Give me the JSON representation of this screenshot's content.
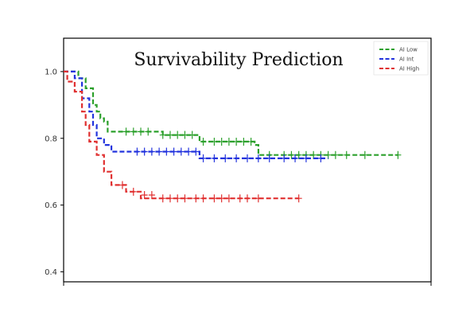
{
  "chart_data": {
    "type": "line",
    "title": "Survivability Prediction",
    "xlabel": "",
    "ylabel": "",
    "ylim": [
      0.37,
      1.1
    ],
    "yticks": [
      "1.0",
      "0.8",
      "0.6",
      "0.4"
    ],
    "x_range": [
      0,
      100
    ],
    "grid": false,
    "legend_position": "top-right",
    "series": [
      {
        "name": "AI Low",
        "color": "#2ca02c",
        "steps": [
          [
            0,
            1.0
          ],
          [
            4,
            0.98
          ],
          [
            6,
            0.95
          ],
          [
            8,
            0.9
          ],
          [
            9,
            0.88
          ],
          [
            10,
            0.86
          ],
          [
            11,
            0.85
          ],
          [
            12,
            0.82
          ],
          [
            27,
            0.81
          ],
          [
            37,
            0.79
          ],
          [
            52,
            0.78
          ],
          [
            53,
            0.75
          ],
          [
            91,
            0.75
          ]
        ],
        "censored": [
          [
            17,
            0.82
          ],
          [
            19,
            0.82
          ],
          [
            21,
            0.82
          ],
          [
            23,
            0.82
          ],
          [
            27,
            0.81
          ],
          [
            29,
            0.81
          ],
          [
            31,
            0.81
          ],
          [
            33,
            0.81
          ],
          [
            35,
            0.81
          ],
          [
            38,
            0.79
          ],
          [
            41,
            0.79
          ],
          [
            43,
            0.79
          ],
          [
            45,
            0.79
          ],
          [
            47,
            0.79
          ],
          [
            49,
            0.79
          ],
          [
            51,
            0.79
          ],
          [
            56,
            0.75
          ],
          [
            60,
            0.75
          ],
          [
            62,
            0.75
          ],
          [
            64,
            0.75
          ],
          [
            66,
            0.75
          ],
          [
            68,
            0.75
          ],
          [
            70,
            0.75
          ],
          [
            72,
            0.75
          ],
          [
            74,
            0.75
          ],
          [
            77,
            0.75
          ],
          [
            82,
            0.75
          ],
          [
            91,
            0.75
          ]
        ]
      },
      {
        "name": "AI Int",
        "color": "#2233dd",
        "steps": [
          [
            0,
            1.0
          ],
          [
            3,
            0.98
          ],
          [
            5,
            0.92
          ],
          [
            7,
            0.88
          ],
          [
            8,
            0.84
          ],
          [
            9,
            0.8
          ],
          [
            11,
            0.78
          ],
          [
            13,
            0.76
          ],
          [
            37,
            0.74
          ],
          [
            72,
            0.74
          ]
        ],
        "censored": [
          [
            20,
            0.76
          ],
          [
            22,
            0.76
          ],
          [
            24,
            0.76
          ],
          [
            26,
            0.76
          ],
          [
            28,
            0.76
          ],
          [
            30,
            0.76
          ],
          [
            32,
            0.76
          ],
          [
            34,
            0.76
          ],
          [
            36,
            0.76
          ],
          [
            38,
            0.74
          ],
          [
            41,
            0.74
          ],
          [
            44,
            0.74
          ],
          [
            47,
            0.74
          ],
          [
            50,
            0.74
          ],
          [
            53,
            0.74
          ],
          [
            56,
            0.74
          ],
          [
            60,
            0.74
          ],
          [
            63,
            0.74
          ],
          [
            66,
            0.74
          ],
          [
            70,
            0.74
          ]
        ]
      },
      {
        "name": "AI High",
        "color": "#e03030",
        "steps": [
          [
            0,
            1.0
          ],
          [
            1,
            0.97
          ],
          [
            3,
            0.94
          ],
          [
            5,
            0.88
          ],
          [
            6,
            0.84
          ],
          [
            7,
            0.79
          ],
          [
            9,
            0.75
          ],
          [
            11,
            0.7
          ],
          [
            13,
            0.66
          ],
          [
            17,
            0.64
          ],
          [
            21,
            0.62
          ],
          [
            64,
            0.62
          ]
        ],
        "censored": [
          [
            16,
            0.66
          ],
          [
            19,
            0.64
          ],
          [
            22,
            0.63
          ],
          [
            24,
            0.63
          ],
          [
            27,
            0.62
          ],
          [
            29,
            0.62
          ],
          [
            31,
            0.62
          ],
          [
            33,
            0.62
          ],
          [
            36,
            0.62
          ],
          [
            38,
            0.62
          ],
          [
            41,
            0.62
          ],
          [
            43,
            0.62
          ],
          [
            45,
            0.62
          ],
          [
            48,
            0.62
          ],
          [
            50,
            0.62
          ],
          [
            53,
            0.62
          ],
          [
            64,
            0.62
          ]
        ]
      }
    ]
  }
}
